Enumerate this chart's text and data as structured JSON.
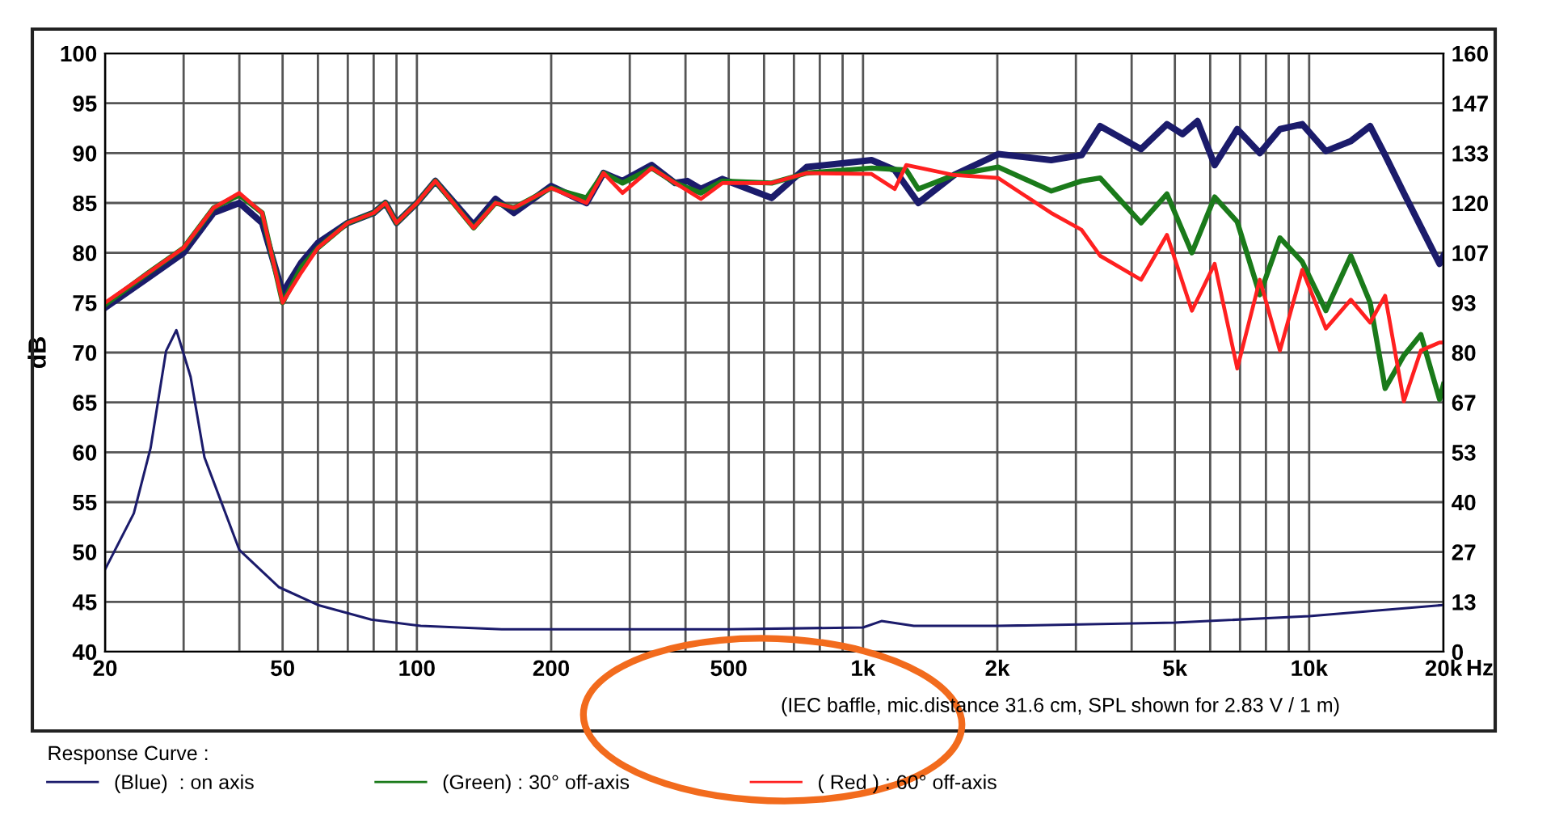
{
  "chart_data": {
    "type": "line",
    "ylabel": "dB",
    "log": "x",
    "grid": true,
    "legend": "bottom",
    "legend_title": "Response Curve :",
    "marker": "none",
    "line_style": "solid",
    "annotations": [
      "(IEC baffle, mic.distance 31.6 cm, SPL shown for 2.83 V / 1 m)"
    ],
    "xlim": [
      20,
      20000
    ],
    "xticks": [
      20,
      {
        "value": 30,
        "label": null
      },
      {
        "value": 40,
        "label": null
      },
      50,
      {
        "value": 60,
        "label": null
      },
      {
        "value": 70,
        "label": null
      },
      {
        "value": 80,
        "label": null
      },
      {
        "value": 90,
        "label": null
      },
      100,
      200,
      {
        "value": 300,
        "label": null
      },
      {
        "value": 400,
        "label": null
      },
      500,
      {
        "value": 600,
        "label": null
      },
      {
        "value": 700,
        "label": null
      },
      {
        "value": 800,
        "label": null
      },
      {
        "value": 900,
        "label": null
      },
      {
        "value": 1000,
        "label": "1k"
      },
      {
        "value": 2000,
        "label": "2k"
      },
      {
        "value": 3000,
        "label": null
      },
      {
        "value": 4000,
        "label": null
      },
      {
        "value": 5000,
        "label": "5k"
      },
      {
        "value": 6000,
        "label": null
      },
      {
        "value": 7000,
        "label": null
      },
      {
        "value": 8000,
        "label": null
      },
      {
        "value": 9000,
        "label": null
      },
      {
        "value": 10000,
        "label": "10k"
      },
      {
        "value": 20000,
        "label": "20k"
      }
    ],
    "xlabel": "Hz",
    "ylim": [
      40,
      100
    ],
    "yticks": [
      40,
      45,
      50,
      55,
      60,
      65,
      70,
      75,
      80,
      85,
      90,
      95,
      100
    ],
    "y2lim": [
      0,
      160
    ],
    "y2ticks": [
      0,
      {
        "value": 13.33,
        "label": "13"
      },
      {
        "value": 26.67,
        "label": "27"
      },
      40,
      {
        "value": 53.33,
        "label": "53"
      },
      {
        "value": 66.67,
        "label": "67"
      },
      80,
      {
        "value": 93.33,
        "label": "93"
      },
      {
        "value": 106.67,
        "label": "107"
      },
      120,
      {
        "value": 133.33,
        "label": "133"
      },
      {
        "value": 146.67,
        "label": "147"
      },
      160
    ],
    "series": [
      {
        "name": "(Blue)  : on axis",
        "color": "#1b1b6b",
        "x": [
          20,
          25,
          30,
          35,
          40,
          45,
          50,
          55,
          60,
          70,
          80,
          85,
          90,
          100,
          110,
          134,
          150,
          165,
          200,
          240,
          262,
          289,
          336,
          379,
          404,
          433,
          484,
          624,
          748,
          1045,
          1178,
          1330,
          1600,
          2010,
          2640,
          3090,
          3400,
          4200,
          4800,
          5200,
          5620,
          6140,
          6900,
          7750,
          8600,
          9650,
          10900,
          12400,
          13700,
          14800,
          16300,
          17800,
          19600,
          20000
        ],
        "values": [
          74.5,
          77.5,
          80,
          84,
          85,
          83,
          76,
          79,
          81,
          83,
          84,
          85,
          83,
          85,
          87.2,
          82.8,
          85.4,
          84,
          86.7,
          85,
          88,
          87.2,
          88.8,
          87,
          87.2,
          86.4,
          87.4,
          85.5,
          88.6,
          89.3,
          88.3,
          85,
          87.8,
          89.9,
          89.3,
          89.8,
          92.7,
          90.4,
          92.9,
          91.9,
          93.2,
          88.8,
          92.4,
          90,
          92.4,
          92.9,
          90.2,
          91.2,
          92.7,
          89.8,
          86,
          82.6,
          78.9,
          79.7
        ]
      },
      {
        "name": "(Green) : 30° off-axis",
        "color": "#1a7a1a",
        "x": [
          20,
          25,
          30,
          35,
          40,
          45,
          50,
          55,
          60,
          70,
          80,
          85,
          90,
          100,
          110,
          134,
          150,
          165,
          200,
          240,
          262,
          289,
          336,
          379,
          433,
          484,
          624,
          748,
          1045,
          1250,
          1330,
          1600,
          2010,
          2640,
          3090,
          3400,
          4200,
          4800,
          5460,
          6140,
          6900,
          7750,
          8600,
          9650,
          10900,
          12400,
          13700,
          14800,
          16300,
          17800,
          19600,
          20000
        ],
        "values": [
          74.8,
          78,
          80.5,
          84.5,
          85.8,
          84,
          75,
          78.5,
          80.5,
          83,
          84,
          85,
          83,
          85,
          87.2,
          82.5,
          85,
          84.5,
          86.5,
          85.5,
          88,
          87,
          88.5,
          87,
          86,
          87.2,
          87,
          88,
          88.5,
          88.3,
          86.4,
          87.8,
          88.6,
          86.2,
          87.2,
          87.5,
          83,
          85.9,
          80,
          85.6,
          83.1,
          75.8,
          81.5,
          79.1,
          74.2,
          79.7,
          75,
          66.4,
          69.7,
          71.8,
          65.3,
          66.8
        ]
      },
      {
        "name": "( Red ) : 60° off-axis",
        "color": "#ff2020",
        "x": [
          20,
          25,
          30,
          35,
          40,
          45,
          50,
          55,
          60,
          70,
          80,
          85,
          90,
          100,
          110,
          134,
          150,
          165,
          200,
          240,
          262,
          289,
          336,
          379,
          433,
          484,
          624,
          748,
          1045,
          1178,
          1250,
          1600,
          2010,
          2640,
          3090,
          3400,
          4200,
          4800,
          5460,
          6140,
          6900,
          7750,
          8600,
          9650,
          10900,
          12400,
          13700,
          14800,
          16300,
          17800,
          19600,
          20000
        ],
        "values": [
          75,
          78,
          80.5,
          84.5,
          86,
          84,
          75,
          78,
          80.5,
          83,
          84,
          85,
          83,
          85,
          87.2,
          82.5,
          85,
          84.5,
          86.5,
          85,
          88,
          86,
          88.5,
          87,
          85.4,
          87,
          87,
          88,
          87.9,
          86.4,
          88.8,
          87.8,
          87.5,
          84,
          82.3,
          79.7,
          77.3,
          81.8,
          74.2,
          78.9,
          68.4,
          77.3,
          70.2,
          78.3,
          72.4,
          75.3,
          73,
          75.7,
          65.1,
          70.2,
          71,
          71
        ]
      },
      {
        "color": "#1b1b6b",
        "axis": "y2",
        "x": [
          20,
          23.2,
          25.3,
          27.4,
          28.9,
          31.1,
          33.4,
          40,
          49,
          60,
          79,
          102,
          155,
          500,
          1000,
          1100,
          1300,
          2000,
          5000,
          10000,
          20000
        ],
        "values": [
          22,
          37,
          54.5,
          80.4,
          86,
          73.5,
          52,
          27.2,
          17.3,
          12.5,
          8.6,
          6.9,
          6,
          6,
          6.5,
          8.2,
          6.9,
          6.9,
          7.8,
          9.5,
          12.5
        ]
      }
    ]
  }
}
